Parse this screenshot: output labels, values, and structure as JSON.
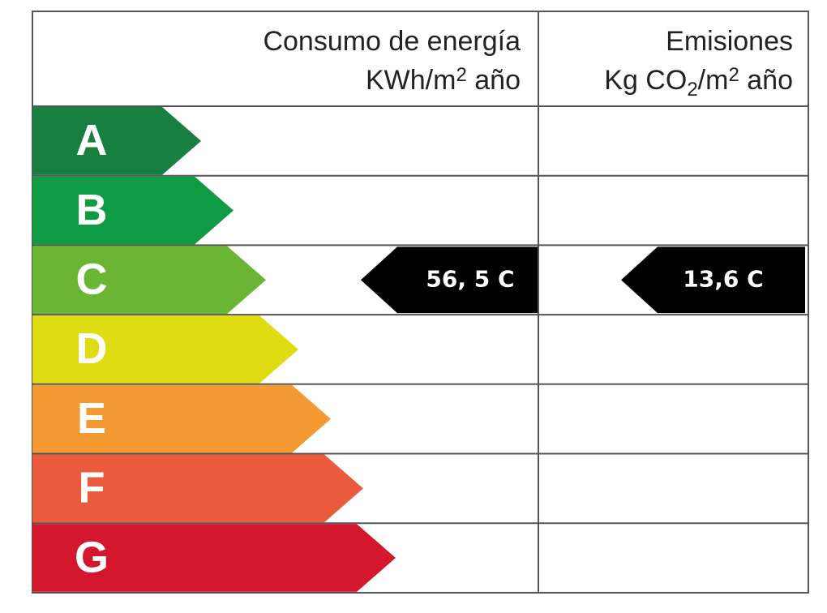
{
  "header": {
    "energy": {
      "line1": "Consumo de energía",
      "line2": [
        "KWh/m",
        "2",
        " año"
      ]
    },
    "emissions": {
      "line1": "Emisiones",
      "line2": [
        "Kg CO",
        "2",
        "/m",
        "2",
        " año"
      ]
    }
  },
  "rows": [
    {
      "letter": "A",
      "color": "#177f3f"
    },
    {
      "letter": "B",
      "color": "#0f9a44"
    },
    {
      "letter": "C",
      "color": "#6ab534",
      "energy": "56, 5 C",
      "emissions": "13,6 C"
    },
    {
      "letter": "D",
      "color": "#e0dc12"
    },
    {
      "letter": "E",
      "color": "#f39a32"
    },
    {
      "letter": "F",
      "color": "#ea5b3e"
    },
    {
      "letter": "G",
      "color": "#d4172d"
    }
  ]
}
